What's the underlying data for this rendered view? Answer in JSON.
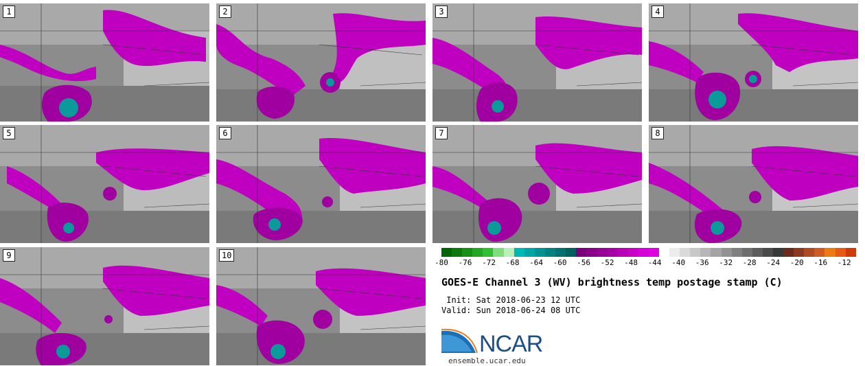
{
  "figure": {
    "title": "GOES-E Channel 3 (WV) brightness temp postage stamp (C)",
    "init_text": " Init: Sat 2018-06-23 12 UTC",
    "valid_text": "Valid: Sun 2018-06-24 08 UTC",
    "logo_text": "NCAR",
    "site_text": "ensemble.ucar.edu"
  },
  "panels": [
    {
      "label": "1"
    },
    {
      "label": "2"
    },
    {
      "label": "3"
    },
    {
      "label": "4"
    },
    {
      "label": "5"
    },
    {
      "label": "6"
    },
    {
      "label": "7"
    },
    {
      "label": "8"
    },
    {
      "label": "9"
    },
    {
      "label": "10"
    }
  ],
  "colorbar": {
    "colors": [
      "#006400",
      "#0b7a0b",
      "#169016",
      "#22a822",
      "#2fc02f",
      "#7fdc7f",
      "#b8f0b8",
      "#00b8b8",
      "#00a6a6",
      "#009494",
      "#008282",
      "#007070",
      "#006060",
      "#7a007a",
      "#8a008a",
      "#990099",
      "#a800a8",
      "#b800b8",
      "#c800c8",
      "#d800d8",
      "#e000e0",
      "#ffffff",
      "#ececec",
      "#dadada",
      "#c8c8c8",
      "#b6b6b6",
      "#a4a4a4",
      "#929292",
      "#808080",
      "#6e6e6e",
      "#5c5c5c",
      "#4a4a4a",
      "#383838",
      "#6b2a1a",
      "#8a3a1e",
      "#b04a20",
      "#d05a22",
      "#f07a10",
      "#e85a10",
      "#d03a0a"
    ],
    "tick_labels": [
      "-80",
      "-76",
      "-72",
      "-68",
      "-64",
      "-60",
      "-56",
      "-52",
      "-48",
      "-44",
      "-40",
      "-36",
      "-32",
      "-28",
      "-24",
      "-20",
      "-16",
      "-12"
    ],
    "range": [
      -80,
      -10
    ]
  }
}
